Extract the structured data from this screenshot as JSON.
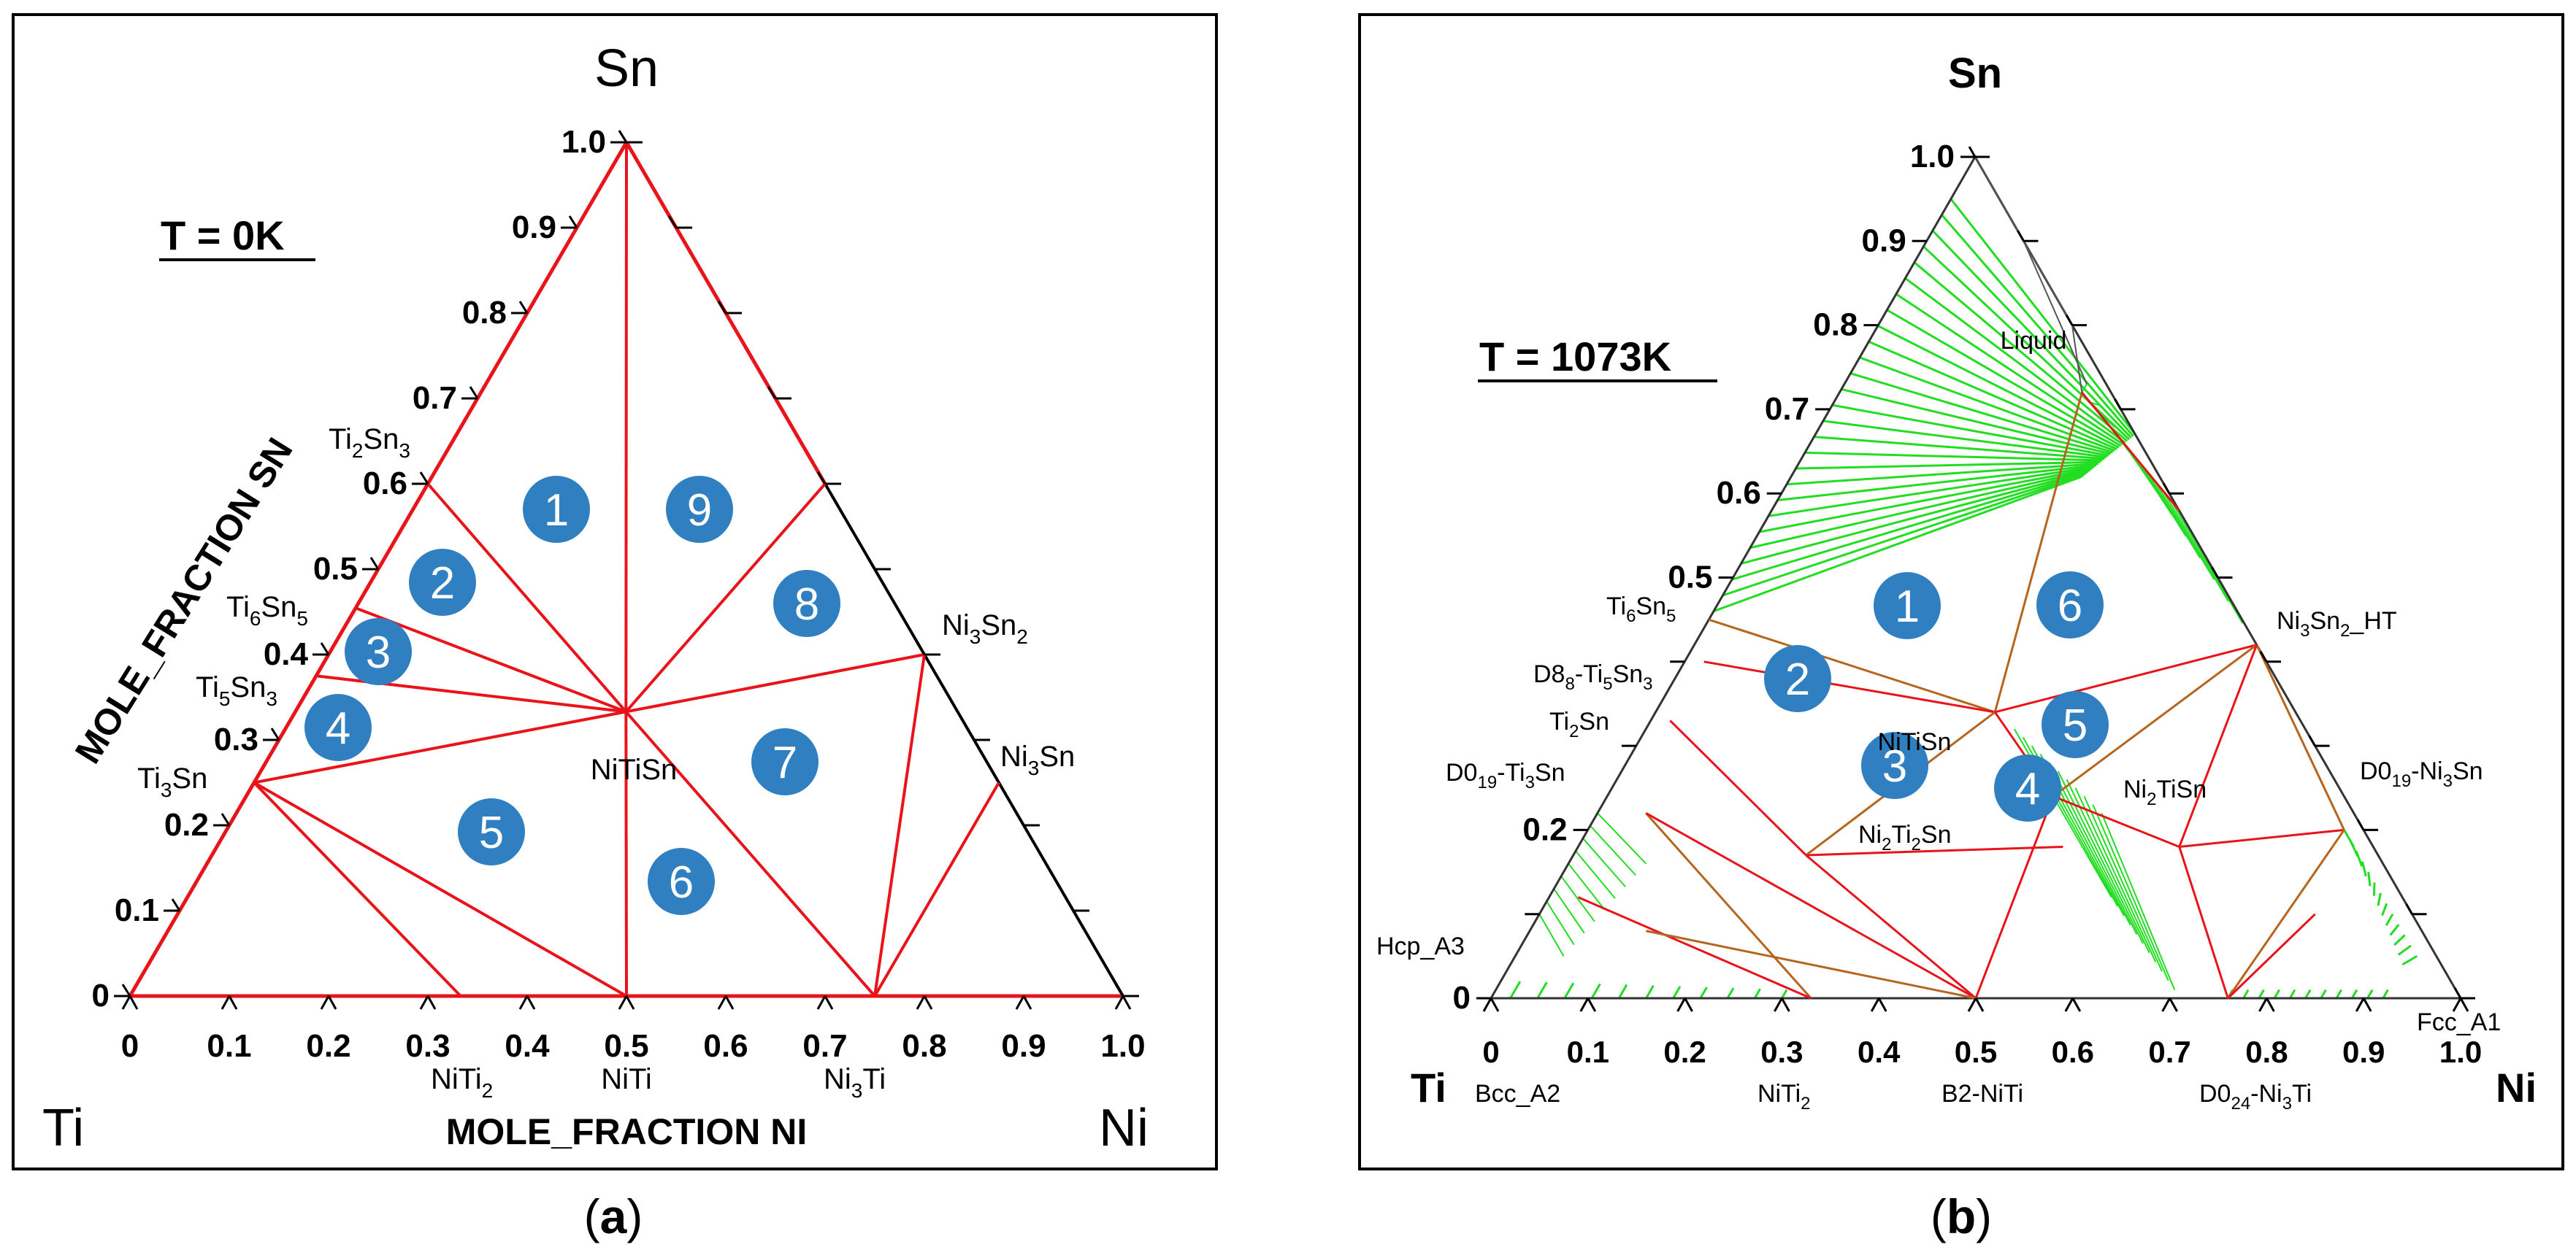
{
  "panel_a": {
    "temperature_label": "T = 0K",
    "corner_labels": {
      "top": "Sn",
      "left": "Ti",
      "right": "Ni"
    },
    "axis_title_left": "MOLE_FRACTION SN",
    "axis_title_bottom": "MOLE_FRACTION NI",
    "ticks_left": [
      "0",
      "0.1",
      "0.2",
      "0.3",
      "0.4",
      "0.5",
      "0.6",
      "0.7",
      "0.8",
      "0.9",
      "1.0"
    ],
    "ticks_bottom": [
      "0",
      "0.1",
      "0.2",
      "0.3",
      "0.4",
      "0.5",
      "0.6",
      "0.7",
      "0.8",
      "0.9",
      "1.0"
    ],
    "phase_labels": {
      "ti2sn3": {
        "base": "Ti",
        "s1": "2",
        "mid": "Sn",
        "s2": "3"
      },
      "ti6sn5": {
        "base": "Ti",
        "s1": "6",
        "mid": "Sn",
        "s2": "5"
      },
      "ti5sn3": {
        "base": "Ti",
        "s1": "5",
        "mid": "Sn",
        "s2": "3"
      },
      "ti3sn": {
        "base": "Ti",
        "s1": "3",
        "mid": "Sn",
        "s2": ""
      },
      "ni3sn2": {
        "base": "Ni",
        "s1": "3",
        "mid": "Sn",
        "s2": "2"
      },
      "ni3sn": {
        "base": "Ni",
        "s1": "3",
        "mid": "Sn",
        "s2": ""
      },
      "nitisn": "NiTiSn",
      "niti2": {
        "base": "NiTi",
        "s1": "2",
        "mid": "",
        "s2": ""
      },
      "niti": "NiTi",
      "ni3ti": {
        "base": "Ni",
        "s1": "3",
        "mid": "Ti",
        "s2": ""
      }
    },
    "region_numbers": [
      "1",
      "2",
      "3",
      "4",
      "5",
      "6",
      "7",
      "8",
      "9"
    ],
    "caption": "(a)"
  },
  "panel_b": {
    "temperature_label": "T = 1073K",
    "corner_labels": {
      "top": "Sn",
      "left": "Ti",
      "right": "Ni"
    },
    "ticks_left": [
      "0",
      "0.2",
      "0.5",
      "0.6",
      "0.7",
      "0.8",
      "0.9",
      "1.0"
    ],
    "ticks_bottom": [
      "0",
      "0.1",
      "0.2",
      "0.3",
      "0.4",
      "0.5",
      "0.6",
      "0.7",
      "0.8",
      "0.9",
      "1.0"
    ],
    "phase_labels": {
      "liquid": "Liquid",
      "ti6sn5": {
        "base": "Ti",
        "s1": "6",
        "mid": "Sn",
        "s2": "5"
      },
      "d88_ti5sn3": {
        "pre": "D8",
        "ps": "8",
        "post": "-Ti",
        "s1": "5",
        "mid": "Sn",
        "s2": "3"
      },
      "ti2sn": {
        "base": "Ti",
        "s1": "2",
        "mid": "Sn",
        "s2": ""
      },
      "d019_ti3sn": {
        "pre": "D0",
        "ps": "19",
        "post": "-Ti",
        "s1": "3",
        "mid": "Sn",
        "s2": ""
      },
      "hcp_a3": "Hcp_A3",
      "bcc_a2": "Bcc_A2",
      "nitisn": "NiTiSn",
      "ni2ti2sn": {
        "base": "Ni",
        "s1": "2",
        "mid": "Ti",
        "s2": "2",
        "post": "Sn"
      },
      "ni2tisn": {
        "base": "Ni",
        "s1": "2",
        "mid": "TiSn",
        "s2": ""
      },
      "ni3sn2_ht": {
        "base": "Ni",
        "s1": "3",
        "mid": "Sn",
        "s2": "2",
        "post": "_HT"
      },
      "d019_ni3sn": {
        "pre": "D0",
        "ps": "19",
        "post": "-Ni",
        "s1": "3",
        "mid": "Sn",
        "s2": ""
      },
      "fcc_a1": "Fcc_A1",
      "niti2": {
        "base": "NiTi",
        "s1": "2",
        "mid": "",
        "s2": ""
      },
      "b2_niti": "B2-NiTi",
      "d024_ni3ti": {
        "pre": "D0",
        "ps": "24",
        "post": "-Ni",
        "s1": "3",
        "mid": "Ti",
        "s2": ""
      }
    },
    "region_numbers": [
      "1",
      "2",
      "3",
      "4",
      "5",
      "6"
    ],
    "caption": "(b)"
  },
  "colors": {
    "tie_line_red": "#e8141a",
    "badge_blue": "#2f7fc1",
    "tie_line_green": "#22dd22",
    "frame": "#000000"
  }
}
